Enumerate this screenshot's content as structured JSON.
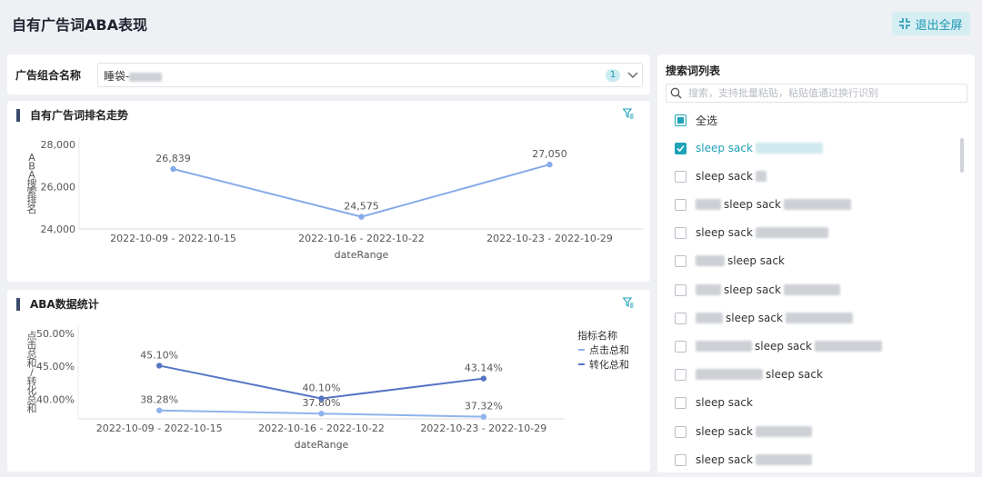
{
  "page": {
    "title": "自有广告词ABA表现",
    "exit_fullscreen_label": "退出全屏"
  },
  "filter": {
    "label": "广告组合名称",
    "value": "睡袋-",
    "selected_count": "1"
  },
  "charts": [
    {
      "title": "自有广告词排名走势",
      "type": "line",
      "categories": [
        "2022-10-09 - 2022-10-15",
        "2022-10-16 - 2022-10-22",
        "2022-10-23 - 2022-10-29"
      ],
      "series": [
        {
          "values": [
            26839,
            24575,
            27050
          ],
          "labels": [
            "26,839",
            "24,575",
            "27,050"
          ],
          "color": "#86abea"
        }
      ],
      "ylabel": "ABA搜索排名",
      "xlabel": "dateRange",
      "ylim": [
        24000,
        28000
      ],
      "yticks": [
        24000,
        26000,
        28000
      ],
      "ytick_labels": [
        "24,000",
        "26,000",
        "28,000"
      ],
      "grid": false,
      "legend": "none"
    },
    {
      "title": "ABA数据统计",
      "type": "line",
      "categories": [
        "2022-10-09 - 2022-10-15",
        "2022-10-16 - 2022-10-22",
        "2022-10-23 - 2022-10-29"
      ],
      "series": [
        {
          "name": "点击总和",
          "values": [
            38.28,
            37.8,
            37.32
          ],
          "labels": [
            "38.28%",
            "37.80%",
            "37.32%"
          ],
          "color": "#8fb3ec"
        },
        {
          "name": "转化总和",
          "values": [
            45.1,
            40.1,
            43.14
          ],
          "labels": [
            "45.10%",
            "40.10%",
            "43.14%"
          ],
          "color": "#5575c4"
        }
      ],
      "ylabel": "点击总和/转化总和",
      "xlabel": "dateRange",
      "ylim": [
        37,
        50
      ],
      "yticks": [
        40,
        45,
        50
      ],
      "ytick_labels": [
        "40.00%",
        "45.00%",
        "50.00%"
      ],
      "legend_title": "指标名称",
      "legend": "right",
      "grid": false
    }
  ],
  "keyword_list": {
    "title": "搜索词列表",
    "search_placeholder": "搜索，支持批量粘贴，粘贴值通过换行识别",
    "search_value": "",
    "items": [
      {
        "label": "全选",
        "state": "indeterminate"
      },
      {
        "label": "sleep sack",
        "state": "checked"
      },
      {
        "label": "sleep sack",
        "state": "unchecked"
      },
      {
        "label": "sleep sack",
        "state": "unchecked"
      },
      {
        "label": "sleep sack",
        "state": "unchecked"
      },
      {
        "label": "sleep sack",
        "state": "unchecked"
      },
      {
        "label": "sleep sack",
        "state": "unchecked"
      },
      {
        "label": "sleep sack",
        "state": "unchecked"
      },
      {
        "label": "sleep sack",
        "state": "unchecked"
      },
      {
        "label": "sleep sack",
        "state": "unchecked"
      },
      {
        "label": "sleep sack",
        "state": "unchecked"
      },
      {
        "label": "sleep sack",
        "state": "unchecked"
      },
      {
        "label": "sleep sack",
        "state": "unchecked"
      }
    ]
  },
  "colors": {
    "accent": "#1ea2b8",
    "title_bar": "#3c4b6c",
    "background": "#eef0f4"
  }
}
